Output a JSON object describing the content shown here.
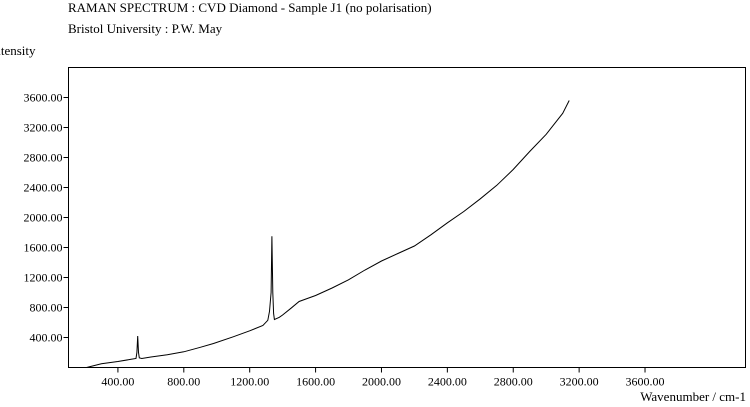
{
  "chart_data": {
    "type": "line",
    "title": "RAMAN SPECTRUM : CVD Diamond - Sample J1 (no polarisation)",
    "subtitle": "Bristol University : P.W. May",
    "xlabel": "Wavenumber / cm-1",
    "ylabel": "Intensity",
    "xlim": [
      100,
      4210
    ],
    "ylim": [
      0,
      4000
    ],
    "x_ticks": [
      400,
      800,
      1200,
      1600,
      2000,
      2400,
      2800,
      3200,
      3600
    ],
    "x_tick_labels": [
      "400.00",
      "800.00",
      "1200.00",
      "1600.00",
      "2000.00",
      "2400.00",
      "2800.00",
      "3200.00",
      "3600.00"
    ],
    "y_ticks": [
      400,
      800,
      1200,
      1600,
      2000,
      2400,
      2800,
      3200,
      3600
    ],
    "y_tick_labels": [
      "400.00",
      "800.00",
      "1200.00",
      "1600.00",
      "2000.00",
      "2400.00",
      "2800.00",
      "3200.00",
      "3600.00"
    ],
    "grid": false,
    "legend": "none",
    "series": [
      {
        "color": "#000000",
        "x": [
          210,
          300,
          400,
          480,
          510,
          515,
          520,
          525,
          530,
          545,
          600,
          700,
          800,
          900,
          980,
          1100,
          1200,
          1280,
          1310,
          1320,
          1330,
          1335,
          1340,
          1345,
          1350,
          1360,
          1380,
          1400,
          1450,
          1500,
          1550,
          1600,
          1700,
          1800,
          1900,
          2000,
          2100,
          2200,
          2300,
          2400,
          2500,
          2600,
          2700,
          2800,
          2900,
          3000,
          3100,
          3140
        ],
        "y": [
          0,
          50,
          80,
          110,
          120,
          200,
          420,
          200,
          130,
          120,
          140,
          170,
          210,
          270,
          320,
          410,
          490,
          560,
          630,
          750,
          1000,
          1750,
          1000,
          720,
          640,
          650,
          670,
          700,
          790,
          880,
          920,
          960,
          1060,
          1170,
          1300,
          1420,
          1520,
          1620,
          1770,
          1930,
          2080,
          2250,
          2430,
          2640,
          2880,
          3110,
          3390,
          3560
        ]
      }
    ]
  }
}
